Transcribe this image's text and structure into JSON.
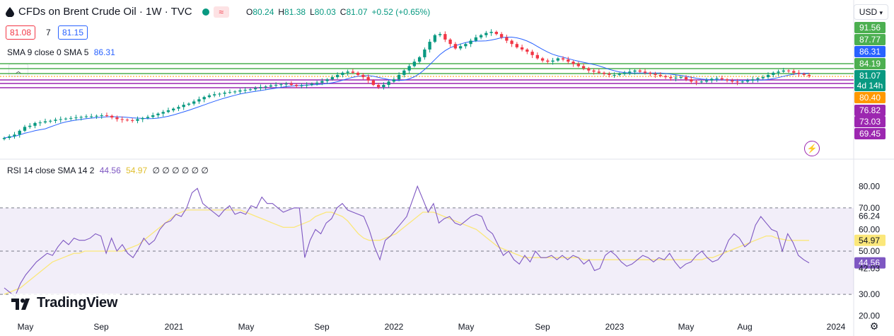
{
  "header": {
    "title": "CFDs on Brent Crude Oil · 1W · TVC",
    "ohlc": [
      {
        "k": "O",
        "v": "80.24"
      },
      {
        "k": "H",
        "v": "81.38"
      },
      {
        "k": "L",
        "v": "80.03"
      },
      {
        "k": "C",
        "v": "81.07"
      }
    ],
    "change": "+0.52 (+0.65%)",
    "bid": "81.08",
    "spread": "7",
    "ask": "81.15",
    "currency": "USD"
  },
  "sma_legend": {
    "label": "SMA 9 close 0 SMA 5",
    "value": "86.31"
  },
  "rsi_legend": {
    "label": "RSI 14 close SMA 14 2",
    "rsi": "44.56",
    "sma": "54.97",
    "rest": "∅ ∅ ∅ ∅ ∅ ∅"
  },
  "colors": {
    "up": "#089981",
    "down": "#f23645",
    "sma": "#2962ff",
    "green_lines": "#4caf50",
    "purple_lines": "#9c27b0",
    "orange_line": "#ff9800",
    "rsi": "#7e57c2",
    "rsi_sma": "#fbe77a"
  },
  "price_axis": {
    "labels": [
      {
        "text": "91.56",
        "bg": "#4caf50"
      },
      {
        "text": "87.77",
        "bg": "#4caf50"
      },
      {
        "text": "86.31",
        "bg": "#2962ff"
      },
      {
        "text": "84.19",
        "bg": "#4caf50"
      },
      {
        "text": "81.07",
        "bg": "#089981"
      },
      {
        "text": "4d 14h",
        "bg": "#089981"
      },
      {
        "text": "80.40",
        "bg": "#ff9800"
      },
      {
        "text": "76.82",
        "bg": "#9c27b0"
      },
      {
        "text": "73.03",
        "bg": "#9c27b0"
      },
      {
        "text": "69.45",
        "bg": "#9c27b0"
      }
    ]
  },
  "rsi_axis": {
    "ticks": [
      "80.00",
      "70.00",
      "66.24",
      "60.00",
      "54.97",
      "50.00",
      "44.56",
      "42.03",
      "30.00",
      "20.00"
    ]
  },
  "x_axis": {
    "ticks": [
      "May",
      "Sep",
      "2021",
      "May",
      "Sep",
      "2022",
      "May",
      "Sep",
      "2023",
      "May",
      "Aug",
      "2024"
    ]
  },
  "branding": {
    "logo_text": "TradingView"
  },
  "chart_data": [
    {
      "type": "candlestick",
      "title": "CFDs on Brent Crude Oil · 1W · TVC",
      "ylim": [
        68,
        100
      ],
      "horizontal_levels": {
        "green": [
          91.56,
          87.77,
          84.19
        ],
        "orange": [
          80.4
        ],
        "purple": [
          76.82,
          73.03,
          69.45
        ]
      },
      "sma": {
        "name": "SMA 9 close 0 SMA 5",
        "last": 86.31
      },
      "close_series": [
        25.0,
        26.5,
        28.0,
        31.5,
        35.0,
        36.0,
        38.5,
        39.0,
        40.0,
        40.5,
        41.5,
        42.0,
        42.5,
        43.0,
        43.5,
        44.0,
        44.5,
        44.5,
        45.0,
        45.5,
        45.0,
        43.5,
        42.0,
        41.5,
        41.0,
        40.5,
        42.0,
        43.0,
        44.0,
        45.5,
        47.0,
        48.5,
        50.0,
        51.5,
        53.0,
        55.0,
        56.0,
        58.0,
        60.0,
        62.0,
        63.5,
        64.5,
        65.0,
        66.0,
        66.5,
        67.0,
        68.0,
        68.5,
        69.0,
        70.0,
        71.0,
        71.5,
        72.5,
        73.0,
        73.5,
        74.0,
        73.0,
        72.0,
        72.5,
        73.0,
        74.0,
        75.0,
        76.5,
        78.0,
        80.0,
        82.0,
        84.0,
        85.0,
        84.0,
        82.0,
        80.0,
        77.0,
        73.0,
        71.0,
        73.0,
        76.0,
        78.0,
        82.0,
        86.0,
        90.0,
        94.0,
        98.0,
        105.0,
        112.0,
        118.0,
        119.0,
        114.0,
        110.0,
        106.0,
        108.0,
        110.0,
        113.0,
        116.0,
        118.0,
        120.0,
        121.0,
        119.0,
        116.0,
        113.0,
        110.0,
        107.0,
        105.0,
        103.0,
        100.0,
        97.0,
        95.0,
        94.0,
        95.0,
        97.0,
        96.0,
        94.0,
        92.0,
        90.0,
        88.0,
        86.0,
        85.0,
        84.0,
        83.0,
        82.0,
        82.0,
        83.0,
        84.0,
        85.0,
        86.0,
        85.0,
        84.0,
        83.0,
        82.0,
        81.0,
        80.0,
        79.0,
        79.5,
        80.0,
        78.0,
        76.0,
        75.5,
        76.0,
        77.0,
        78.5,
        79.0,
        78.0,
        77.0,
        76.0,
        75.5,
        76.0,
        77.0,
        78.0,
        79.0,
        80.0,
        82.0,
        84.0,
        85.0,
        86.0,
        85.5,
        84.0,
        83.0,
        82.0,
        81.07
      ]
    },
    {
      "type": "line",
      "title": "RSI 14 close SMA 14 2",
      "ylim": [
        15,
        85
      ],
      "bands": {
        "upper": 70,
        "middle": 50,
        "lower": 30
      },
      "series": [
        {
          "name": "RSI",
          "last": 44.56,
          "values": [
            33,
            31,
            29,
            35,
            39,
            42,
            45,
            47,
            49,
            48,
            52,
            55,
            53,
            56,
            55,
            55,
            56,
            58,
            57,
            49,
            56,
            50,
            53,
            49,
            47,
            51,
            56,
            53,
            55,
            60,
            63,
            64,
            67,
            66,
            70,
            77,
            79,
            72,
            70,
            68,
            66,
            69,
            71,
            67,
            68,
            67,
            71,
            70,
            75,
            72,
            72,
            70,
            68,
            69,
            70,
            70,
            47,
            55,
            60,
            58,
            63,
            65,
            70,
            72,
            69,
            68,
            67,
            66,
            60,
            52,
            46,
            55,
            57,
            60,
            63,
            66,
            73,
            80,
            74,
            68,
            72,
            63,
            65,
            66,
            63,
            62,
            64,
            66,
            67,
            66,
            60,
            58,
            53,
            48,
            50,
            46,
            44,
            48,
            45,
            50,
            47,
            47,
            48,
            46,
            48,
            46,
            48,
            47,
            44,
            46,
            41,
            42,
            48,
            50,
            48,
            45,
            43,
            44,
            46,
            48,
            47,
            45,
            47,
            46,
            49,
            45,
            42,
            44,
            45,
            48,
            50,
            47,
            45,
            46,
            49,
            55,
            58,
            56,
            52,
            54,
            62,
            66,
            63,
            60,
            59,
            50,
            58,
            54,
            48,
            46,
            44.56
          ]
        },
        {
          "name": "SMA",
          "last": 54.97,
          "values": [
            30,
            31,
            32,
            33,
            35,
            37,
            39,
            41,
            43,
            45,
            46,
            47,
            48,
            49,
            49,
            50,
            50,
            50,
            50,
            50,
            50,
            50,
            50,
            51,
            52,
            53,
            55,
            57,
            59,
            61,
            63,
            65,
            67,
            68,
            69,
            69,
            69,
            69,
            69,
            69,
            69,
            69,
            69,
            69,
            69,
            68,
            67,
            66,
            65,
            64,
            63,
            62,
            61,
            61,
            61,
            62,
            63,
            64,
            66,
            67,
            68,
            68,
            67,
            66,
            64,
            61,
            58,
            56,
            55,
            55,
            55,
            56,
            57,
            58,
            60,
            62,
            64,
            66,
            68,
            68,
            68,
            67,
            66,
            65,
            64,
            63,
            62,
            61,
            60,
            58,
            56,
            54,
            52,
            51,
            50,
            49,
            48,
            47,
            47,
            47,
            47,
            47,
            47,
            47,
            47,
            47,
            47,
            47,
            46,
            46,
            46,
            46,
            46,
            46,
            46,
            46,
            46,
            46,
            46,
            46,
            46,
            46,
            46,
            46,
            46,
            46,
            46,
            46,
            46,
            46,
            46,
            47,
            47,
            48,
            49,
            50,
            51,
            52,
            53,
            54,
            55,
            56,
            57,
            57,
            56,
            55.5,
            55,
            54.97,
            54.97,
            54.97,
            54.97
          ]
        }
      ]
    }
  ]
}
